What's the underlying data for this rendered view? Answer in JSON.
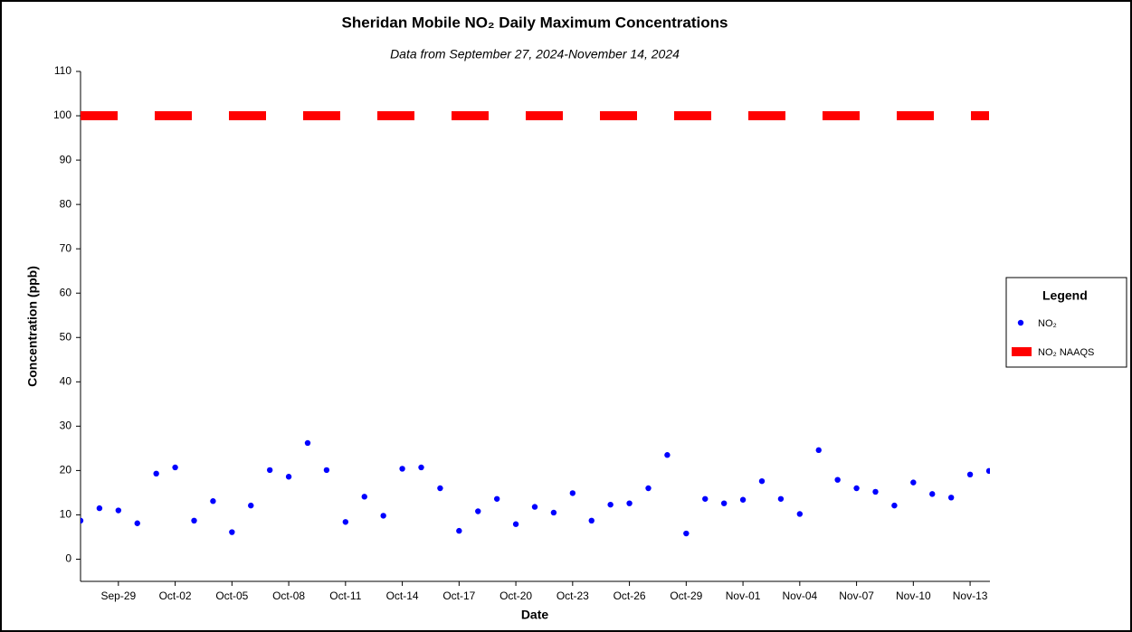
{
  "chart_data": {
    "type": "scatter",
    "title": "Sheridan Mobile NO₂ Daily Maximum Concentrations",
    "subtitle": "Data from September 27, 2024-November 14, 2024",
    "xlabel": "Date",
    "ylabel": "Concentration (ppb)",
    "legend_title": "Legend",
    "legend": "right",
    "categories": [
      null,
      null,
      "Sep-29",
      null,
      null,
      "Oct-02",
      null,
      null,
      "Oct-05",
      null,
      null,
      "Oct-08",
      null,
      null,
      "Oct-11",
      null,
      null,
      "Oct-14",
      null,
      null,
      "Oct-17",
      null,
      null,
      "Oct-20",
      null,
      null,
      "Oct-23",
      null,
      null,
      "Oct-26",
      null,
      null,
      "Oct-29",
      null,
      null,
      "Nov-01",
      null,
      null,
      "Nov-04",
      null,
      null,
      "Nov-07",
      null,
      null,
      "Nov-10",
      null,
      null,
      "Nov-13",
      null
    ],
    "series": [
      {
        "name": "NO₂",
        "color": "#0000ff",
        "values": [
          8.7,
          11.5,
          11.0,
          8.1,
          19.3,
          20.7,
          8.7,
          13.1,
          6.1,
          12.1,
          20.1,
          18.6,
          26.2,
          20.1,
          8.4,
          14.1,
          9.8,
          20.4,
          20.7,
          16.0,
          6.4,
          10.8,
          13.6,
          7.9,
          11.8,
          10.5,
          14.9,
          8.7,
          12.3,
          12.6,
          16.0,
          23.5,
          5.8,
          13.6,
          12.6,
          13.4,
          17.6,
          13.6,
          10.2,
          24.6,
          17.9,
          16.0,
          15.2,
          12.1,
          17.3,
          14.7,
          13.9,
          19.1,
          19.9
        ]
      }
    ],
    "hline": {
      "name": "NO₂ NAAQS",
      "color": "#ff0000",
      "value": 100
    },
    "ylim": [
      -5,
      110
    ],
    "yticks": [
      0,
      10,
      20,
      30,
      40,
      50,
      60,
      70,
      80,
      90,
      100,
      110
    ]
  }
}
